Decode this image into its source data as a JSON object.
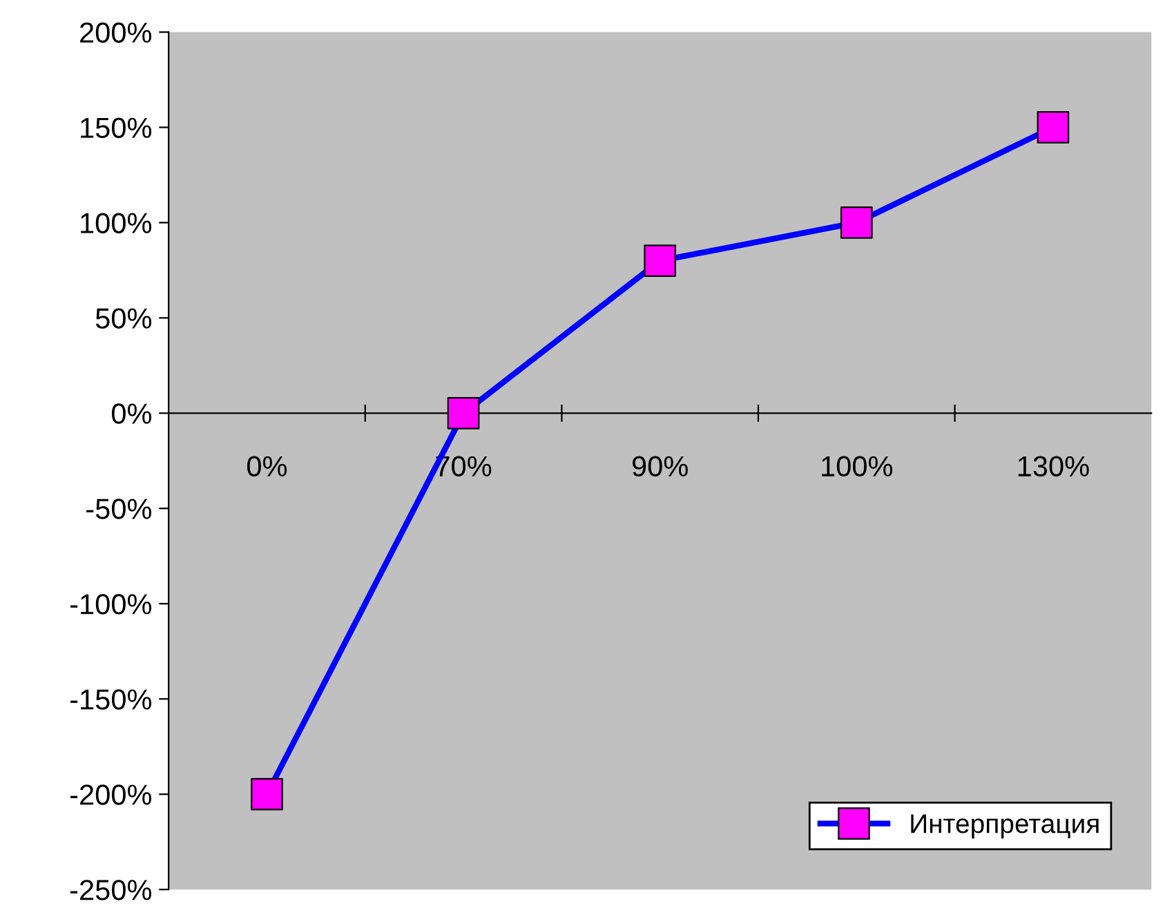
{
  "chart_data": {
    "type": "line",
    "categories": [
      "0%",
      "70%",
      "90%",
      "100%",
      "130%"
    ],
    "series": [
      {
        "name": "Интерпретация",
        "color": "#0000ff",
        "colors": [
          "#ff00ff",
          "#ff00ff",
          "#ff00ff",
          "#ff00ff",
          "#ff00ff"
        ],
        "values": [
          -200,
          0,
          80,
          100,
          150
        ]
      }
    ],
    "ylim": [
      -250,
      200
    ],
    "yticks": [
      {
        "value": -250,
        "label": "-250%"
      },
      {
        "value": -200,
        "label": "-200%"
      },
      {
        "value": -150,
        "label": "-150%"
      },
      {
        "value": -100,
        "label": "-100%"
      },
      {
        "value": -50,
        "label": "-50%"
      },
      {
        "value": 0,
        "label": "0%"
      },
      {
        "value": 50,
        "label": "50%"
      },
      {
        "value": 100,
        "label": "100%"
      },
      {
        "value": 150,
        "label": "150%"
      },
      {
        "value": 200,
        "label": "200%"
      }
    ],
    "marker": "square",
    "line_style": "solid",
    "grid": false,
    "legend": "bottom right"
  }
}
